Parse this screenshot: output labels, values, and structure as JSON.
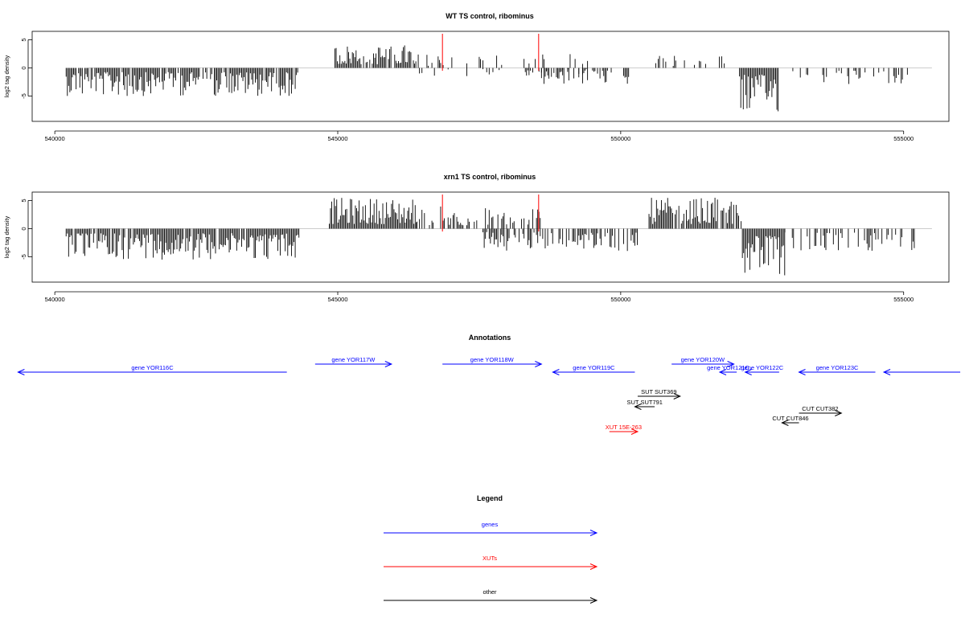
{
  "chart_data": [
    {
      "type": "bar",
      "title": "WT TS control, ribominus",
      "xlabel": "",
      "ylabel": "log2 tag density",
      "xlim": [
        539600,
        555800
      ],
      "ylim": [
        -9.5,
        6.5
      ],
      "x_ticks": [
        540000,
        545000,
        550000,
        555000
      ],
      "y_ticks": [
        -5,
        0,
        5
      ],
      "markers": {
        "x": [
          546850,
          548550
        ],
        "color": "#ff0000"
      },
      "segments": [
        {
          "from": 540200,
          "to": 544300,
          "sign": -1,
          "max": 5,
          "density": 0.85
        },
        {
          "from": 544950,
          "to": 546400,
          "sign": 1,
          "max": 4.2,
          "density": 0.85
        },
        {
          "from": 546400,
          "to": 549500,
          "sign": 1,
          "max": 2.5,
          "density": 0.18
        },
        {
          "from": 546400,
          "to": 549500,
          "sign": -1,
          "max": 1.5,
          "density": 0.12
        },
        {
          "from": 548600,
          "to": 550200,
          "sign": -1,
          "max": 3,
          "density": 0.45
        },
        {
          "from": 550400,
          "to": 552100,
          "sign": 1,
          "max": 2.2,
          "density": 0.25
        },
        {
          "from": 552100,
          "to": 552800,
          "sign": -1,
          "max": 8,
          "density": 1.0
        },
        {
          "from": 552800,
          "to": 555200,
          "sign": -1,
          "max": 3,
          "density": 0.28
        }
      ]
    },
    {
      "type": "bar",
      "title": "xrn1 TS control, ribominus",
      "xlabel": "",
      "ylabel": "log2 tag density",
      "xlim": [
        539600,
        555800
      ],
      "ylim": [
        -9.5,
        6.5
      ],
      "x_ticks": [
        540000,
        545000,
        550000,
        555000
      ],
      "y_ticks": [
        -5,
        0,
        5
      ],
      "markers": {
        "x": [
          546850,
          548550
        ],
        "color": "#ff0000"
      },
      "segments": [
        {
          "from": 540200,
          "to": 544350,
          "sign": -1,
          "max": 5.5,
          "density": 0.9
        },
        {
          "from": 544850,
          "to": 546400,
          "sign": 1,
          "max": 5.5,
          "density": 1.0
        },
        {
          "from": 546400,
          "to": 548600,
          "sign": 1,
          "max": 4,
          "density": 0.55
        },
        {
          "from": 547500,
          "to": 550300,
          "sign": -1,
          "max": 4,
          "density": 0.55
        },
        {
          "from": 550500,
          "to": 552150,
          "sign": 1,
          "max": 5.5,
          "density": 0.9
        },
        {
          "from": 552150,
          "to": 552900,
          "sign": -1,
          "max": 8.5,
          "density": 1.0
        },
        {
          "from": 552900,
          "to": 555200,
          "sign": -1,
          "max": 4,
          "density": 0.45
        }
      ]
    }
  ],
  "annotations": {
    "title": "Annotations",
    "features": [
      {
        "label": "gene YOR116C",
        "start": 539350,
        "end": 544100,
        "strand": "-",
        "color": "#0000ff",
        "row": 1
      },
      {
        "label": "gene YOR117W",
        "start": 544600,
        "end": 545950,
        "strand": "+",
        "color": "#0000ff",
        "row": 0
      },
      {
        "label": "gene YOR118W",
        "start": 546850,
        "end": 548600,
        "strand": "+",
        "color": "#0000ff",
        "row": 0
      },
      {
        "label": "gene YOR119C",
        "start": 548800,
        "end": 550250,
        "strand": "-",
        "color": "#0000ff",
        "row": 1
      },
      {
        "label": "gene YOR120W",
        "start": 550900,
        "end": 552000,
        "strand": "+",
        "color": "#0000ff",
        "row": 0
      },
      {
        "label": "gene YOR121C",
        "start": 551750,
        "end": 552050,
        "strand": "-",
        "color": "#0000ff",
        "row": 1
      },
      {
        "label": "gene YOR122C",
        "start": 552200,
        "end": 552800,
        "strand": "-",
        "color": "#0000ff",
        "row": 1
      },
      {
        "label": "gene YOR123C",
        "start": 553150,
        "end": 554500,
        "strand": "-",
        "color": "#0000ff",
        "row": 1
      },
      {
        "label": "",
        "start": 554650,
        "end": 556000,
        "strand": "-",
        "color": "#0000ff",
        "row": 1
      },
      {
        "label": "SUT SUT369",
        "start": 550300,
        "end": 551050,
        "strand": "+",
        "color": "#000000",
        "row": 3
      },
      {
        "label": "SUT SUT791",
        "start": 550250,
        "end": 550600,
        "strand": "-",
        "color": "#000000",
        "row": 4
      },
      {
        "label": "CUT CUT382",
        "start": 553150,
        "end": 553900,
        "strand": "+",
        "color": "#000000",
        "row": 5
      },
      {
        "label": "CUT CUT846",
        "start": 552850,
        "end": 553150,
        "strand": "-",
        "color": "#000000",
        "row": 6
      },
      {
        "label": "XUT 15E-263",
        "start": 549800,
        "end": 550300,
        "strand": "+",
        "color": "#ff0000",
        "row": 7
      }
    ]
  },
  "legend": {
    "title": "Legend",
    "items": [
      {
        "label": "genes",
        "color": "#0000ff"
      },
      {
        "label": "XUTs",
        "color": "#ff0000"
      },
      {
        "label": "other",
        "color": "#000000"
      }
    ]
  }
}
